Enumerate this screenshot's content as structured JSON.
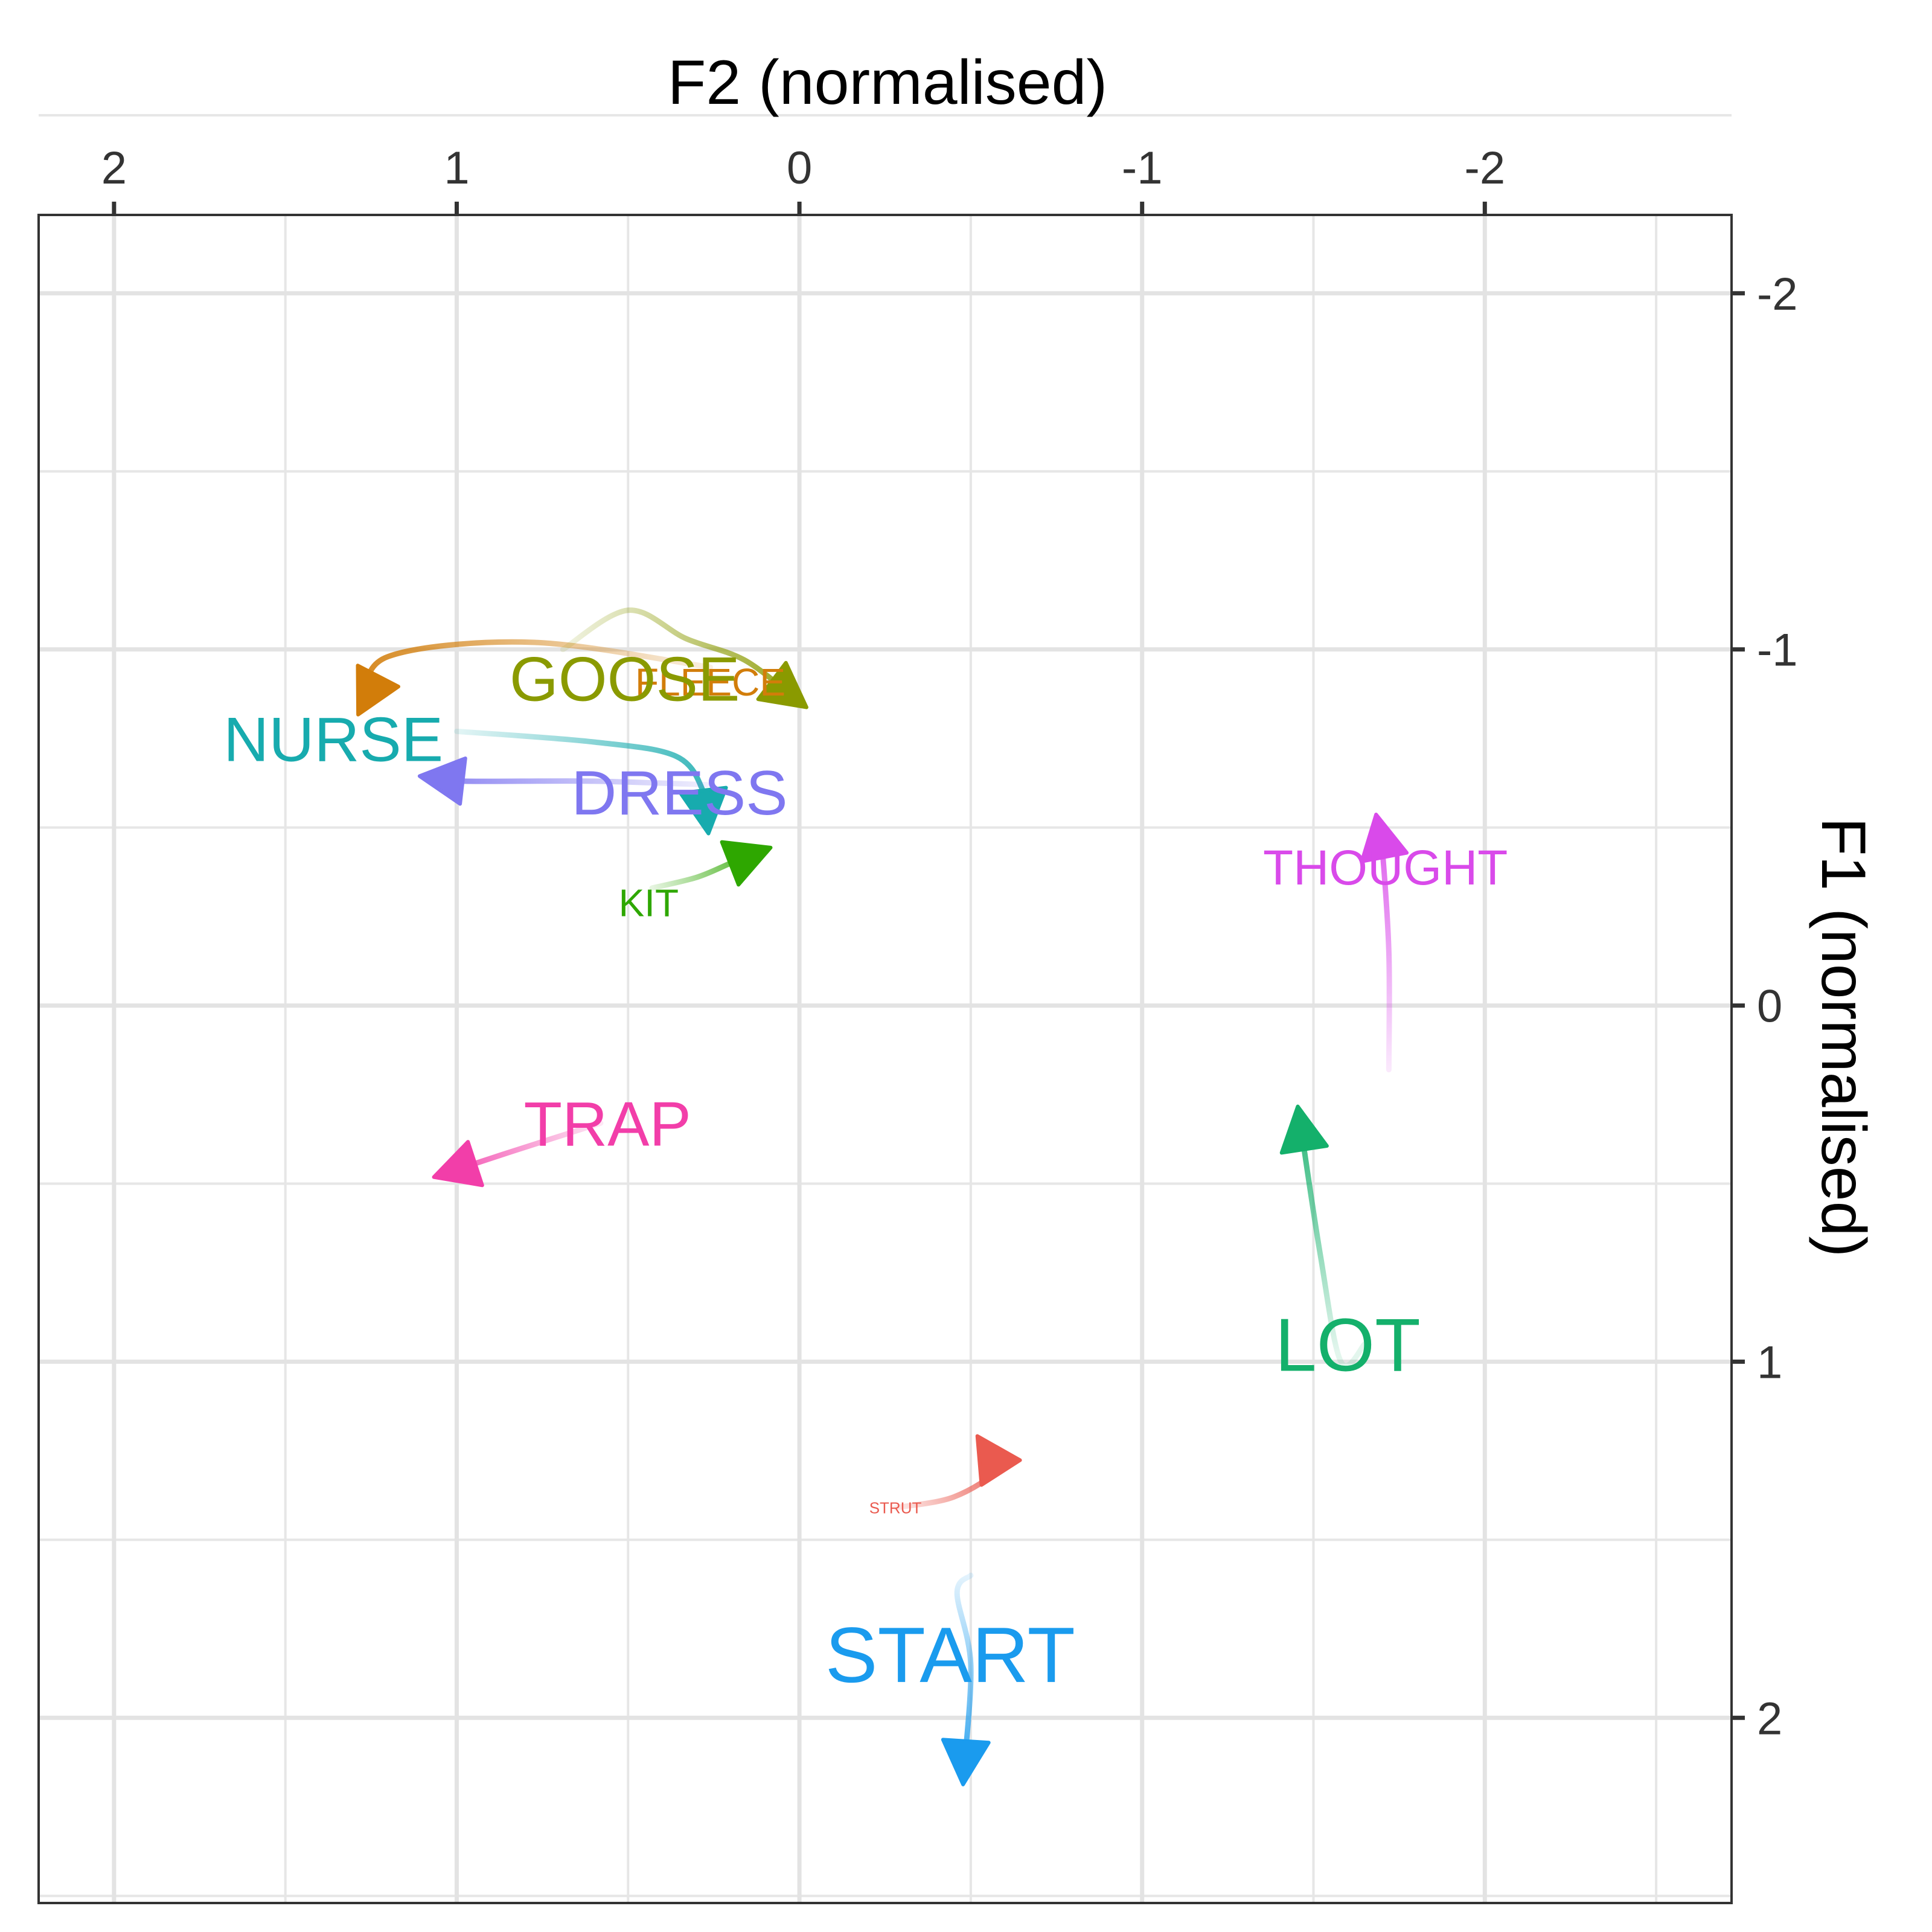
{
  "chart_data": {
    "type": "line",
    "xlabel": "F2 (normalised)",
    "ylabel": "F1 (normalised)",
    "x_axis": {
      "reversed": true,
      "position": "top",
      "lim": [
        2.22,
        -2.72
      ],
      "ticks": [
        2,
        1,
        0,
        -1,
        -2
      ],
      "tick_labels": [
        "2",
        "1",
        "0",
        "-1",
        "-2"
      ]
    },
    "y_axis": {
      "reversed": true,
      "position": "right",
      "lim": [
        -2.22,
        2.52
      ],
      "ticks": [
        -2,
        -1,
        0,
        1,
        2
      ],
      "tick_labels": [
        "-2",
        "-1",
        "0",
        "1",
        "2"
      ]
    },
    "grid": true,
    "series": [
      {
        "name": "FLEECE",
        "color": "#D27D0A",
        "label_size": 64,
        "label_pos": {
          "x": 0.26,
          "y": -0.91
        },
        "points": [
          {
            "x": 0.26,
            "y": -0.95
          },
          {
            "x": 0.78,
            "y": -1.02
          },
          {
            "x": 1.2,
            "y": -0.98
          },
          {
            "x": 1.27,
            "y": -0.85
          }
        ]
      },
      {
        "name": "GOOSE",
        "color": "#8A9A00",
        "label_size": 104,
        "label_pos": {
          "x": 0.51,
          "y": -0.92
        },
        "points": [
          {
            "x": 0.69,
            "y": -1.0
          },
          {
            "x": 0.5,
            "y": -1.11
          },
          {
            "x": 0.33,
            "y": -1.03
          },
          {
            "x": 0.16,
            "y": -0.97
          },
          {
            "x": 0.01,
            "y": -0.86
          }
        ]
      },
      {
        "name": "NURSE",
        "color": "#17ABAE",
        "label_size": 104,
        "label_pos": {
          "x": 1.36,
          "y": -0.75
        },
        "points": [
          {
            "x": 1.0,
            "y": -0.77
          },
          {
            "x": 0.6,
            "y": -0.74
          },
          {
            "x": 0.36,
            "y": -0.7
          },
          {
            "x": 0.28,
            "y": -0.6
          },
          {
            "x": 0.27,
            "y": -0.52
          }
        ]
      },
      {
        "name": "DRESS",
        "color": "#7F77F0",
        "label_size": 104,
        "label_pos": {
          "x": 0.35,
          "y": -0.6
        },
        "points": [
          {
            "x": 0.27,
            "y": -0.62
          },
          {
            "x": 0.6,
            "y": -0.63
          },
          {
            "x": 0.98,
            "y": -0.63
          },
          {
            "x": 1.07,
            "y": -0.64
          }
        ]
      },
      {
        "name": "KIT",
        "color": "#2EA700",
        "label_size": 64,
        "label_pos": {
          "x": 0.44,
          "y": -0.29
        },
        "points": [
          {
            "x": 0.43,
            "y": -0.33
          },
          {
            "x": 0.3,
            "y": -0.36
          },
          {
            "x": 0.2,
            "y": -0.4
          },
          {
            "x": 0.12,
            "y": -0.43
          }
        ]
      },
      {
        "name": "THOUGHT",
        "color": "#D94AEA",
        "label_size": 82,
        "label_pos": {
          "x": -1.71,
          "y": -0.39
        },
        "points": [
          {
            "x": -1.72,
            "y": 0.18
          },
          {
            "x": -1.72,
            "y": -0.15
          },
          {
            "x": -1.7,
            "y": -0.45
          },
          {
            "x": -1.69,
            "y": -0.5
          }
        ]
      },
      {
        "name": "TRAP",
        "color": "#F23EA9",
        "label_size": 104,
        "label_pos": {
          "x": 0.56,
          "y": 0.33
        },
        "points": [
          {
            "x": 0.58,
            "y": 0.33
          },
          {
            "x": 0.84,
            "y": 0.41
          },
          {
            "x": 1.03,
            "y": 0.47
          }
        ]
      },
      {
        "name": "LOT",
        "color": "#14B06B",
        "label_size": 124,
        "label_pos": {
          "x": -1.6,
          "y": 0.95
        },
        "points": [
          {
            "x": -1.65,
            "y": 0.95
          },
          {
            "x": -1.58,
            "y": 1.0
          },
          {
            "x": -1.52,
            "y": 0.7
          },
          {
            "x": -1.46,
            "y": 0.32
          }
        ]
      },
      {
        "name": "STRUT",
        "color": "#EA5A4F",
        "label_size": 26,
        "label_pos": {
          "x": -0.28,
          "y": 1.41
        },
        "points": [
          {
            "x": -0.28,
            "y": 1.41
          },
          {
            "x": -0.45,
            "y": 1.38
          },
          {
            "x": -0.58,
            "y": 1.3
          },
          {
            "x": -0.54,
            "y": 1.24
          }
        ]
      },
      {
        "name": "START",
        "color": "#1A9BEE",
        "label_size": 130,
        "label_pos": {
          "x": -0.44,
          "y": 1.82
        },
        "points": [
          {
            "x": -0.5,
            "y": 1.6
          },
          {
            "x": -0.46,
            "y": 1.65
          },
          {
            "x": -0.5,
            "y": 1.85
          },
          {
            "x": -0.48,
            "y": 2.15
          }
        ]
      }
    ]
  }
}
